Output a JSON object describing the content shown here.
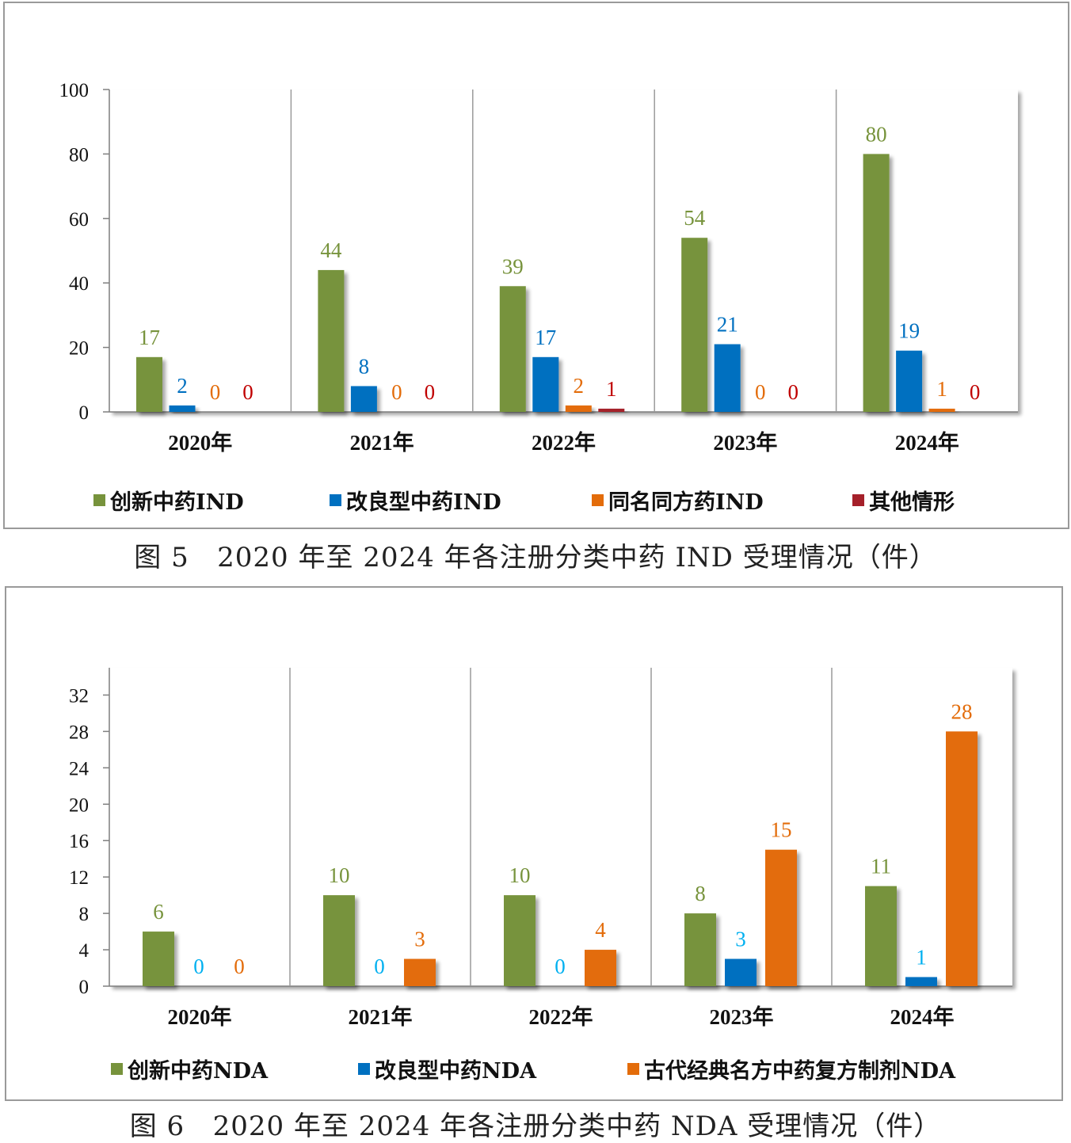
{
  "figures": [
    {
      "caption": "图 5   2020 年至 2024 年各注册分类中药 IND 受理情况（件）",
      "chart_data": {
        "type": "bar",
        "categories": [
          "2020年",
          "2021年",
          "2022年",
          "2023年",
          "2024年"
        ],
        "series": [
          {
            "name": "创新中药IND",
            "color": "#77933c",
            "label_color": "#77933c",
            "values": [
              17,
              44,
              39,
              54,
              80
            ]
          },
          {
            "name": "改良型中药IND",
            "color": "#0070c0",
            "label_color": "#0070c0",
            "values": [
              2,
              8,
              17,
              21,
              19
            ]
          },
          {
            "name": "同名同方药IND",
            "color": "#e36c0a",
            "label_color": "#e36c0a",
            "values": [
              0,
              0,
              2,
              0,
              1
            ]
          },
          {
            "name": "其他情形",
            "color": "#a5202a",
            "label_color": "#c00000",
            "values": [
              0,
              0,
              1,
              0,
              0
            ]
          }
        ],
        "ylim": [
          0,
          100
        ],
        "yticks": [
          0,
          20,
          40,
          60,
          80,
          100
        ],
        "grid": false,
        "legend_position": "bottom"
      }
    },
    {
      "caption": "图 6   2020 年至 2024 年各注册分类中药 NDA 受理情况（件）",
      "chart_data": {
        "type": "bar",
        "categories": [
          "2020年",
          "2021年",
          "2022年",
          "2023年",
          "2024年"
        ],
        "series": [
          {
            "name": "创新中药NDA",
            "color": "#77933c",
            "label_color": "#77933c",
            "values": [
              6,
              10,
              10,
              8,
              11
            ]
          },
          {
            "name": "改良型中药NDA",
            "color": "#0070c0",
            "label_color": "#00b0f0",
            "values": [
              0,
              0,
              0,
              3,
              1
            ]
          },
          {
            "name": "古代经典名方中药复方制剂NDA",
            "color": "#e36c0a",
            "label_color": "#e36c0a",
            "values": [
              0,
              3,
              4,
              15,
              28
            ]
          }
        ],
        "ylim": [
          0,
          35
        ],
        "yticks": [
          0,
          4,
          8,
          12,
          16,
          20,
          24,
          28,
          32
        ],
        "grid": false,
        "legend_position": "bottom"
      }
    }
  ]
}
